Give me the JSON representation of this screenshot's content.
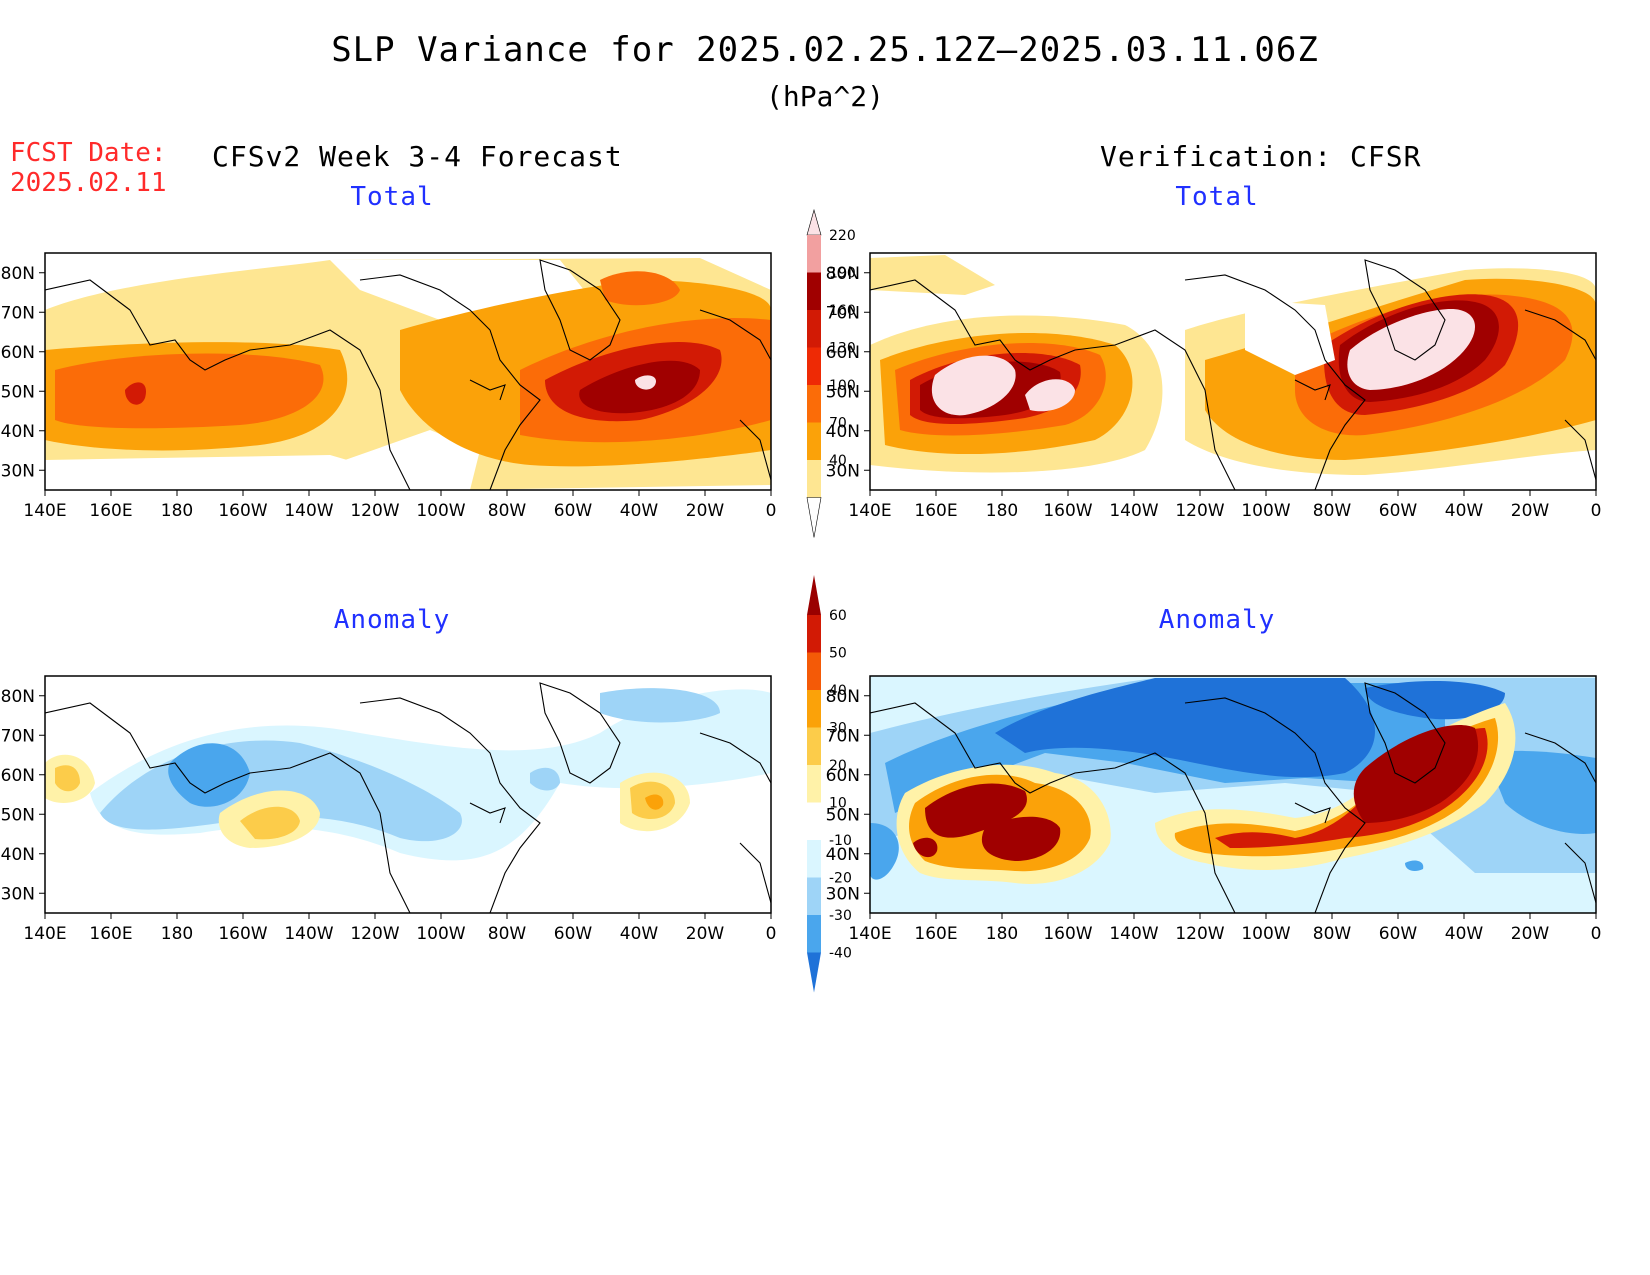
{
  "header": {
    "title": "SLP Variance for 2025.02.25.12Z–2025.03.11.06Z",
    "units": "(hPa^2)",
    "fcst_label": "FCST Date:",
    "fcst_date": "2025.02.11",
    "left_heading": "CFSv2 Week 3-4 Forecast",
    "right_heading": "Verification: CFSR"
  },
  "panels": [
    {
      "id": "fcst-total",
      "title": "Total"
    },
    {
      "id": "verif-total",
      "title": "Total"
    },
    {
      "id": "fcst-anom",
      "title": "Anomaly"
    },
    {
      "id": "verif-anom",
      "title": "Anomaly"
    }
  ],
  "axes": {
    "lon_labels": [
      "140E",
      "160E",
      "180",
      "160W",
      "140W",
      "120W",
      "100W",
      "80W",
      "60W",
      "40W",
      "20W",
      "0"
    ],
    "lat_labels": [
      "80N",
      "70N",
      "60N",
      "50N",
      "40N",
      "30N"
    ],
    "lon_range": [
      140,
      360
    ],
    "lat_range": [
      25,
      85
    ]
  },
  "colorbars": {
    "total": {
      "levels": [
        "40",
        "70",
        "100",
        "130",
        "160",
        "190",
        "220"
      ],
      "colors": [
        "#fee692",
        "#fba209",
        "#fb6c08",
        "#ee2a05",
        "#d21a05",
        "#a00000",
        "#f2a0a0",
        "#fbe2e6"
      ]
    },
    "anomaly": {
      "levels": [
        "60",
        "50",
        "40",
        "30",
        "20",
        "10",
        "-10",
        "-20",
        "-30",
        "-40"
      ],
      "colors": [
        "#9a0000",
        "#d21a05",
        "#f45a07",
        "#fba209",
        "#fccc4a",
        "#fff2a8",
        "#ffffff",
        "#daf6ff",
        "#9ed4f7",
        "#4aa6ed",
        "#1f72d8"
      ]
    }
  },
  "map_icons": [
    "coastline-icon"
  ]
}
